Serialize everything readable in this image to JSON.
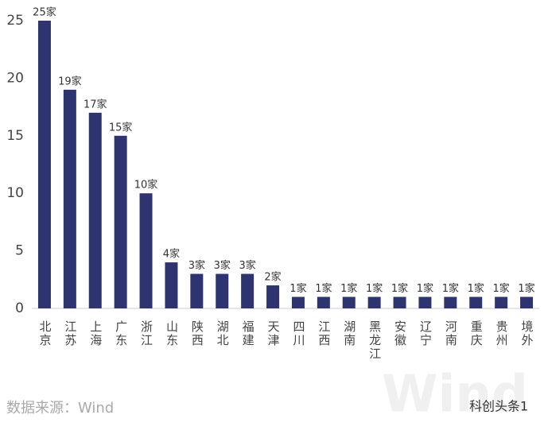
{
  "chart_data": {
    "type": "bar",
    "categories": [
      "北京",
      "江苏",
      "上海",
      "广东",
      "浙江",
      "山东",
      "陕西",
      "湖北",
      "福建",
      "天津",
      "四川",
      "江西",
      "湖南",
      "黑龙江",
      "安徽",
      "辽宁",
      "河南",
      "重庆",
      "贵州",
      "境外"
    ],
    "values": [
      25,
      19,
      17,
      15,
      10,
      4,
      3,
      3,
      3,
      2,
      1,
      1,
      1,
      1,
      1,
      1,
      1,
      1,
      1,
      1
    ],
    "value_labels": [
      "25家",
      "19家",
      "17家",
      "15家",
      "10家",
      "4家",
      "3家",
      "3家",
      "3家",
      "2家",
      "1家",
      "1家",
      "1家",
      "1家",
      "1家",
      "1家",
      "1家",
      "1家",
      "1家",
      "1家"
    ],
    "color": "#2e3470",
    "ylim": [
      0,
      25
    ],
    "yticks": [
      0,
      5,
      10,
      15,
      20,
      25
    ],
    "grid": false,
    "source": "数据来源：Wind",
    "watermark": "Wind",
    "account": "科创头条1"
  }
}
